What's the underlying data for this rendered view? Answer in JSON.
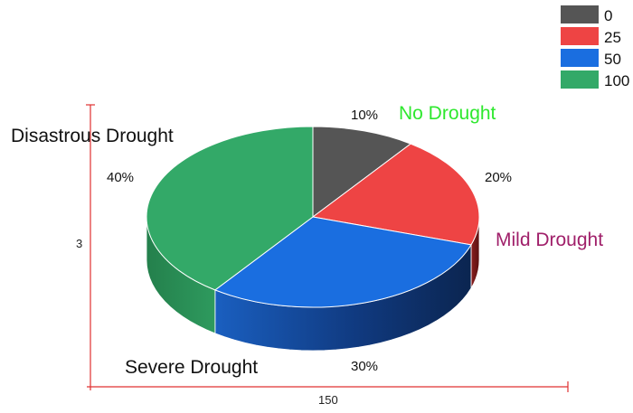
{
  "chart_data": {
    "type": "pie",
    "style": "3d",
    "series": [
      {
        "name": "0",
        "value": 10,
        "label": "10%",
        "color": "#555555"
      },
      {
        "name": "25",
        "value": 20,
        "label": "20%",
        "color": "#ee4444"
      },
      {
        "name": "50",
        "value": 30,
        "label": "30%",
        "color": "#1a6ee0"
      },
      {
        "name": "100",
        "value": 40,
        "label": "40%",
        "color": "#33a968"
      }
    ],
    "annotations": [
      {
        "text": "No Drought",
        "color": "#2ee82e"
      },
      {
        "text": "Mild Drought",
        "color": "#a0206a"
      },
      {
        "text": "Severe Drought",
        "color": "#111111"
      },
      {
        "text": "Disastrous Drought",
        "color": "#111111"
      }
    ],
    "axis": {
      "y_value": "3",
      "x_value": "150",
      "color": "#e03030"
    },
    "legend_position": "top-right"
  }
}
